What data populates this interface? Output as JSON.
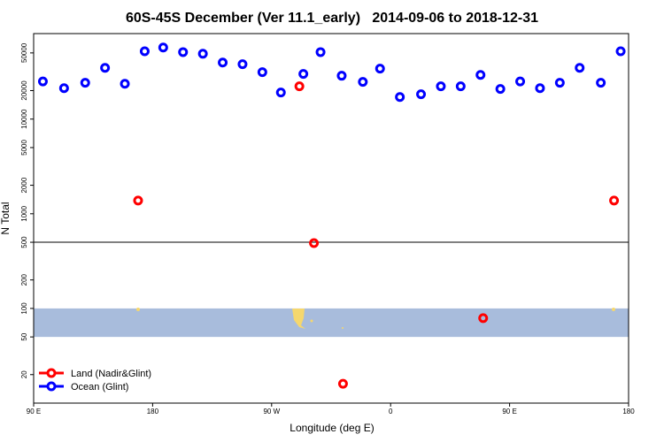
{
  "chart_data": {
    "type": "scatter",
    "title": "60S-45S December (Ver 11.1_early)   2014-09-06 to 2018-12-31",
    "x_label": "Longitude (deg E)",
    "y_label": "N Total",
    "y_scale": "log",
    "xlim": [
      90,
      540
    ],
    "ylim": [
      10,
      80000
    ],
    "xticks": [
      {
        "value": 90,
        "label": "90 E"
      },
      180,
      {
        "value": 270,
        "label": "90 W"
      },
      {
        "value": 360,
        "label": "0"
      },
      {
        "value": 450,
        "label": "90 E"
      },
      {
        "value": 540,
        "label": "180"
      }
    ],
    "yticks": [
      20,
      50,
      100,
      200,
      500,
      1000,
      2000,
      5000,
      10000,
      20000,
      50000
    ],
    "reference_line": 500,
    "shaded_range": [
      50,
      100
    ],
    "shade_color": "#a8bcdc",
    "legend": "lower left",
    "series": [
      {
        "name": "Land (Nadir&Glint)",
        "color": "#ff0000",
        "x": [
          169,
          291,
          302,
          324,
          430,
          529
        ],
        "values": [
          1380,
          22200,
          490,
          16,
          79,
          1380
        ]
      },
      {
        "name": "Ocean (Glint)",
        "color": "#0000ff",
        "x": [
          97,
          113,
          129,
          144,
          159,
          174,
          188,
          203,
          218,
          233,
          248,
          263,
          277,
          294,
          307,
          323,
          339,
          352,
          367,
          383,
          398,
          413,
          428,
          443,
          458,
          473,
          488,
          503,
          519,
          534
        ],
        "values": [
          25000,
          21200,
          24200,
          34800,
          23600,
          52000,
          57000,
          51000,
          49000,
          39600,
          38000,
          31300,
          19100,
          30000,
          51000,
          28700,
          24700,
          34100,
          17100,
          18300,
          22200,
          22200,
          29300,
          20800,
          25000,
          21200,
          24200,
          34800,
          24200,
          52000
        ]
      }
    ]
  }
}
